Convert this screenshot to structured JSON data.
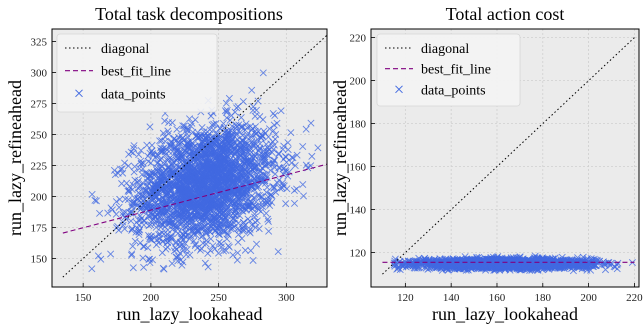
{
  "colors": {
    "plot_bg": "#ebebeb",
    "grid": "#ffffff",
    "diagonal": "#000000",
    "best_fit": "#800080",
    "points": "#4169e1",
    "legend_bg": "#f4f4f4"
  },
  "chart_data": [
    {
      "type": "scatter",
      "title": "Total task decompositions",
      "xlabel": "run_lazy_lookahead",
      "ylabel": "run_lazy_refineahead",
      "xlim": [
        127,
        330
      ],
      "ylim": [
        127,
        335
      ],
      "xticks": [
        150,
        200,
        250,
        300
      ],
      "yticks": [
        150,
        175,
        200,
        225,
        250,
        275,
        300,
        325
      ],
      "grid": true,
      "legend": {
        "position": "top-left",
        "entries": [
          {
            "label": "diagonal",
            "style": "dotted",
            "color": "#000000"
          },
          {
            "label": "best_fit_line",
            "style": "dashed",
            "color": "#800080"
          },
          {
            "label": "data_points",
            "marker": "x",
            "color": "#4169e1"
          }
        ]
      },
      "diagonal": {
        "x": [
          135,
          330
        ],
        "y": [
          135,
          330
        ]
      },
      "best_fit_line": {
        "x": [
          135,
          330
        ],
        "y": [
          170.5,
          226
        ]
      },
      "points_distribution": {
        "center": [
          240,
          210
        ],
        "spread": [
          26,
          24
        ],
        "correlation": 0.25,
        "count": 2600,
        "range": {
          "x": [
            148,
            328
          ],
          "y": [
            140,
            300
          ]
        }
      }
    },
    {
      "type": "scatter",
      "title": "Total action cost",
      "xlabel": "run_lazy_lookahead",
      "ylabel": "run_lazy_refineahead",
      "xlim": [
        105,
        222
      ],
      "ylim": [
        104,
        224
      ],
      "xticks": [
        120,
        140,
        160,
        180,
        200,
        220
      ],
      "yticks": [
        120,
        140,
        160,
        180,
        200,
        220
      ],
      "grid": true,
      "legend": {
        "position": "top-left",
        "entries": [
          {
            "label": "diagonal",
            "style": "dotted",
            "color": "#000000"
          },
          {
            "label": "best_fit_line",
            "style": "dashed",
            "color": "#800080"
          },
          {
            "label": "data_points",
            "marker": "x",
            "color": "#4169e1"
          }
        ]
      },
      "diagonal": {
        "x": [
          110,
          220
        ],
        "y": [
          110,
          220
        ]
      },
      "best_fit_line": {
        "x": [
          110,
          220
        ],
        "y": [
          115.5,
          115.5
        ]
      },
      "points_distribution": {
        "center": [
          163,
          114.8
        ],
        "spread": [
          19,
          1.1
        ],
        "correlation": 0,
        "count": 2400,
        "range": {
          "x": [
            115,
            220
          ],
          "y": [
            111.5,
            118.5
          ]
        }
      }
    }
  ]
}
